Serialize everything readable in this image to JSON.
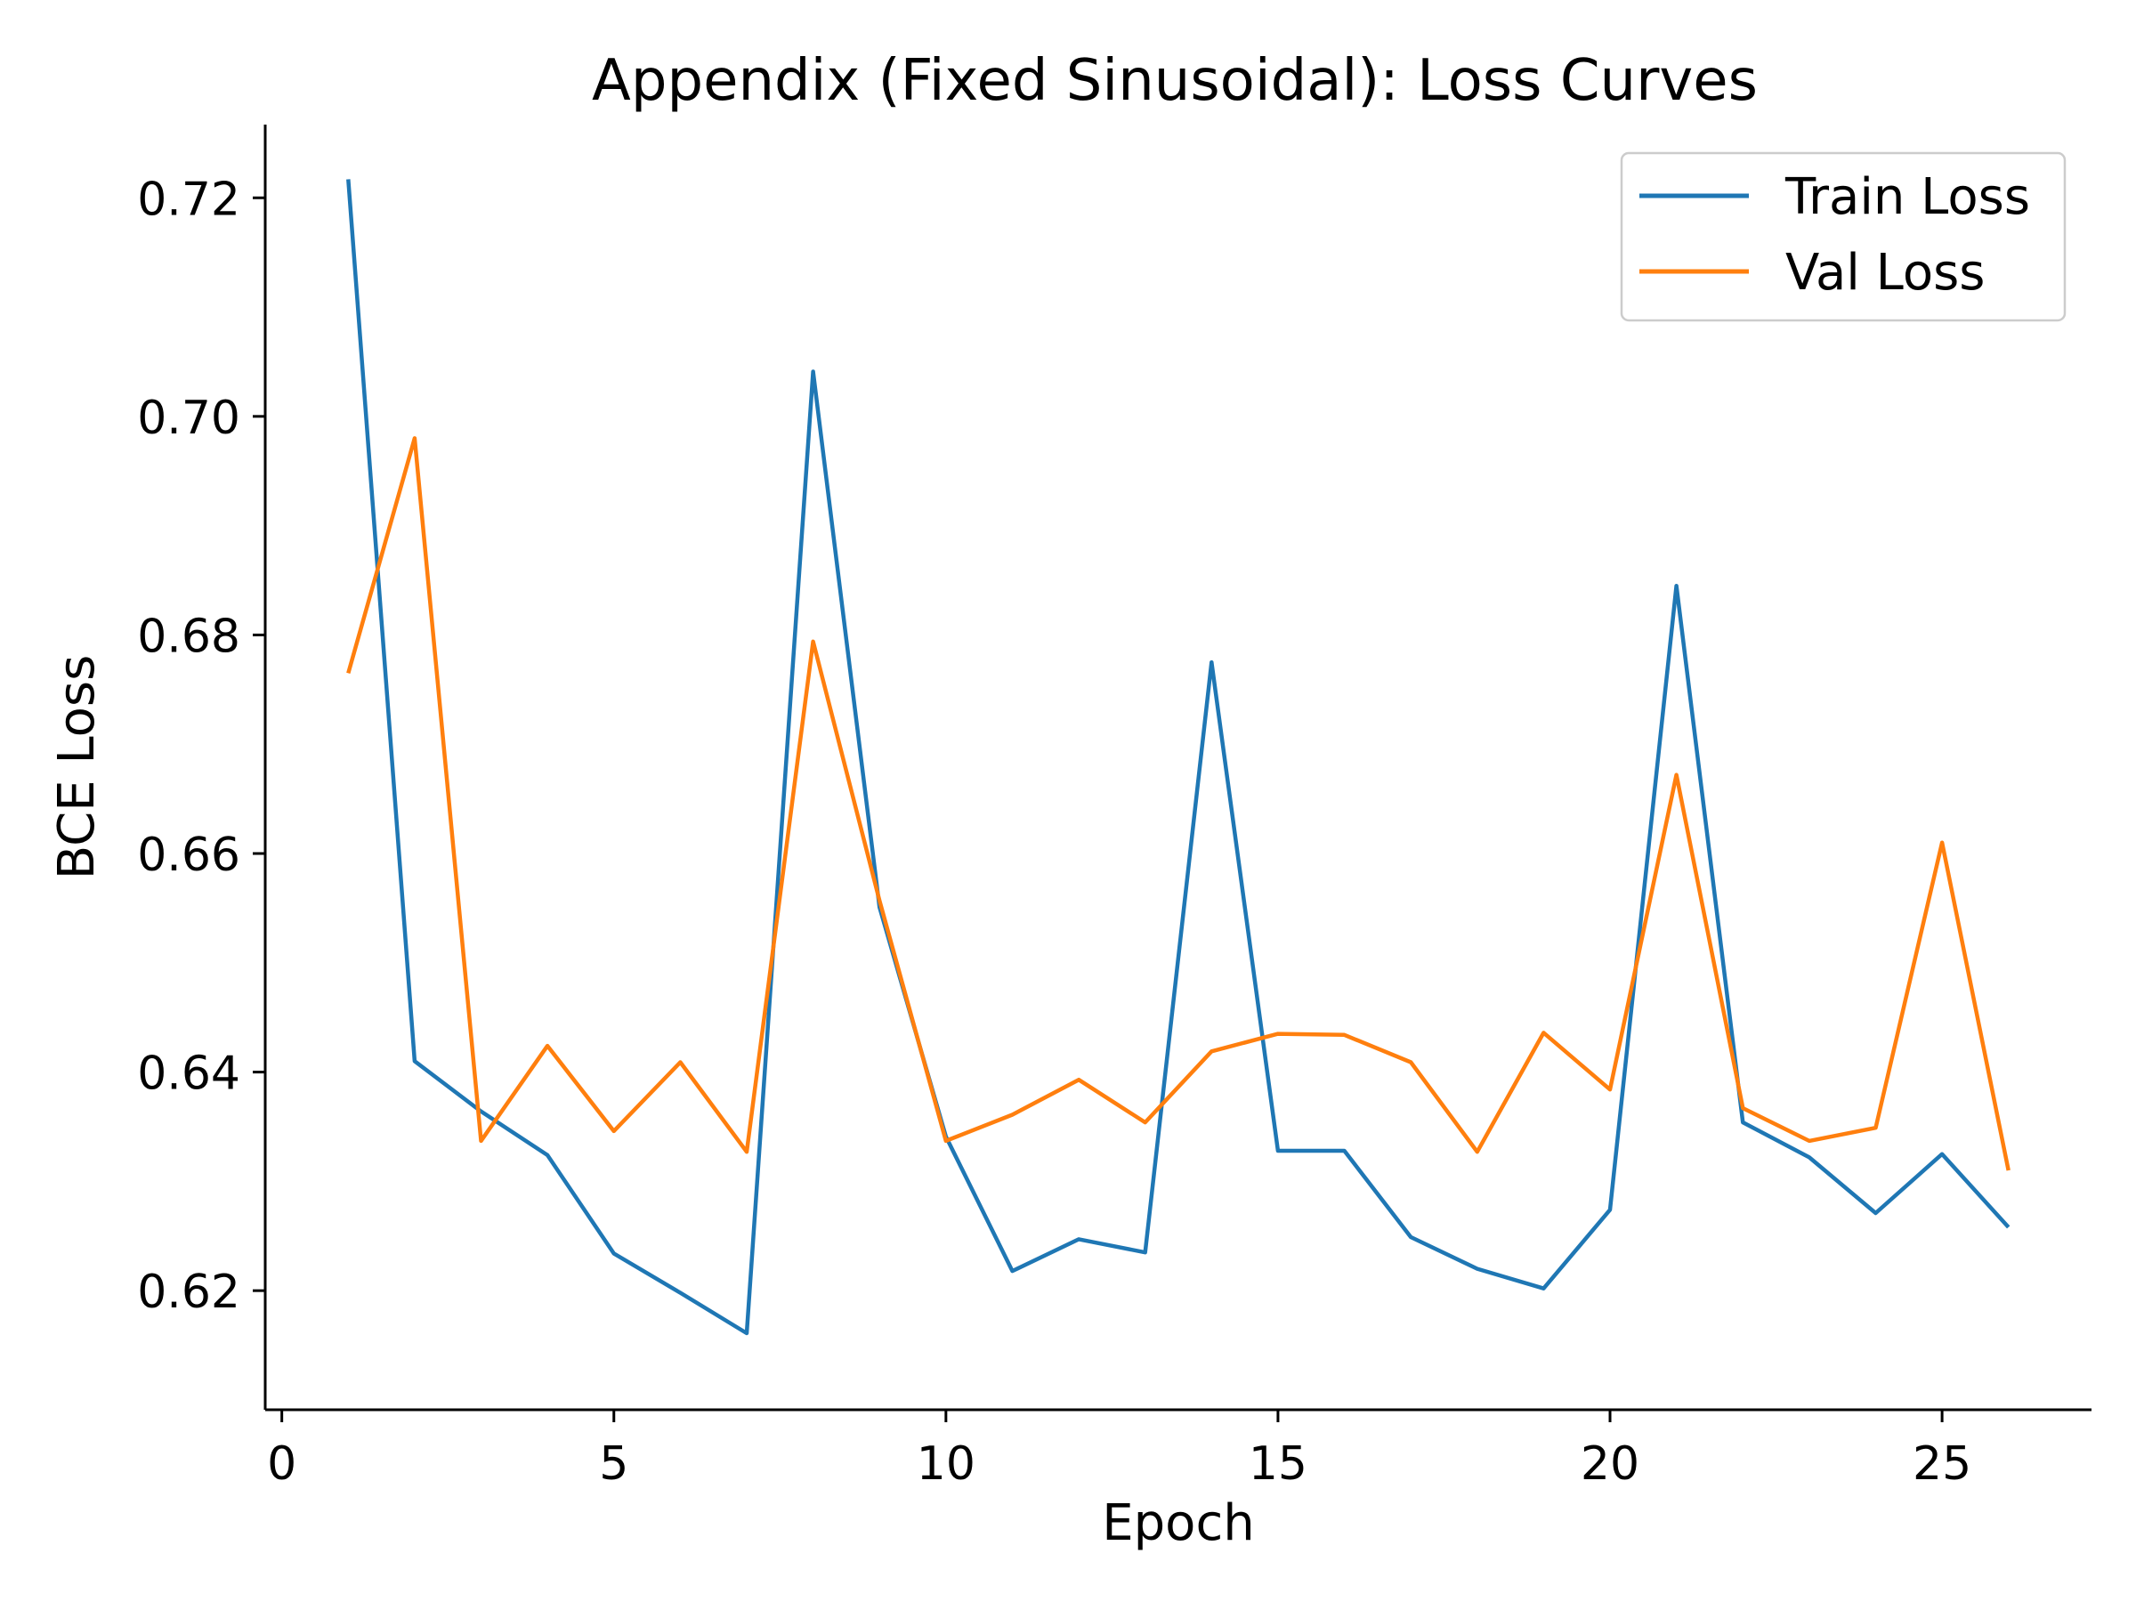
{
  "chart_data": {
    "type": "line",
    "title": "Appendix (Fixed Sinusoidal): Loss Curves",
    "xlabel": "Epoch",
    "ylabel": "BCE Loss",
    "xlim": [
      -0.25,
      27.25
    ],
    "ylim": [
      0.6091,
      0.7267
    ],
    "xticks": [
      0,
      5,
      10,
      15,
      20,
      25
    ],
    "xtick_labels": [
      "0",
      "5",
      "10",
      "15",
      "20",
      "25"
    ],
    "yticks": [
      0.62,
      0.64,
      0.66,
      0.68,
      0.7,
      0.72
    ],
    "ytick_labels": [
      "0.62",
      "0.64",
      "0.66",
      "0.68",
      "0.70",
      "0.72"
    ],
    "grid": false,
    "legend_position": "top-right",
    "x": [
      1,
      2,
      3,
      4,
      5,
      6,
      7,
      8,
      9,
      10,
      11,
      12,
      13,
      14,
      15,
      16,
      17,
      18,
      19,
      20,
      21,
      22,
      23,
      24,
      25,
      26
    ],
    "series": [
      {
        "name": "Train Loss",
        "color": "#1f77b4",
        "values": [
          0.7217,
          0.641,
          0.6364,
          0.6324,
          0.6234,
          0.6198,
          0.6161,
          0.7041,
          0.6551,
          0.6341,
          0.6218,
          0.6247,
          0.6235,
          0.6775,
          0.6328,
          0.6328,
          0.6249,
          0.622,
          0.6202,
          0.6274,
          0.6845,
          0.6354,
          0.6322,
          0.6271,
          0.6325,
          0.6258
        ]
      },
      {
        "name": "Val Loss",
        "color": "#ff7f0e",
        "values": [
          0.6765,
          0.698,
          0.6337,
          0.6424,
          0.6346,
          0.6409,
          0.6327,
          0.6794,
          0.6557,
          0.6337,
          0.6361,
          0.6393,
          0.6354,
          0.6419,
          0.6435,
          0.6434,
          0.6409,
          0.6327,
          0.6436,
          0.6384,
          0.6672,
          0.6367,
          0.6337,
          0.6349,
          0.661,
          0.631
        ]
      }
    ]
  }
}
